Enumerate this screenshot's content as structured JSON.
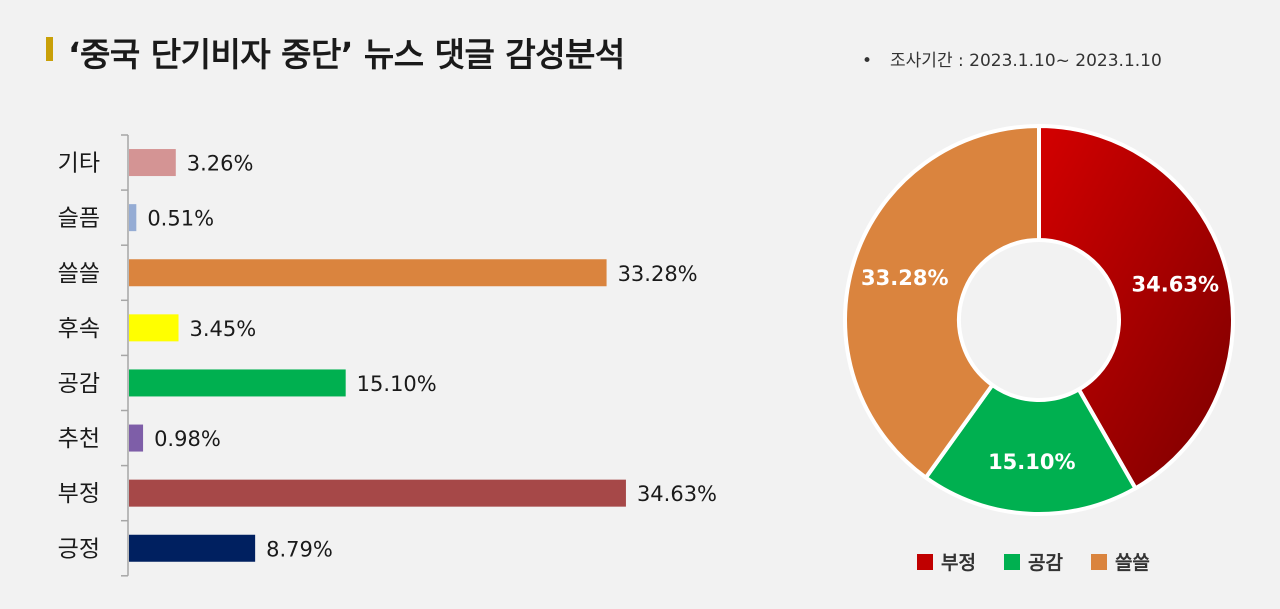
{
  "header": {
    "title": "‘중국 단기비자 중단’ 뉴스 댓글 감성분석",
    "period_bullet": "•",
    "period": "조사기간 : 2023.1.10~ 2023.1.10"
  },
  "chart_data": [
    {
      "type": "bar",
      "orientation": "horizontal",
      "categories": [
        "기타",
        "슬픔",
        "쓸쓸",
        "후속",
        "공감",
        "추천",
        "부정",
        "긍정"
      ],
      "values": [
        3.26,
        0.51,
        33.28,
        3.45,
        15.1,
        0.98,
        34.63,
        8.79
      ],
      "labels": [
        "3.26%",
        "0.51%",
        "33.28%",
        "3.45%",
        "15.10%",
        "0.98%",
        "34.63%",
        "8.79%"
      ],
      "colors": [
        "#d49494",
        "#95acd4",
        "#da843e",
        "#ffff00",
        "#00b050",
        "#7e5ea8",
        "#a64848",
        "#002060"
      ],
      "unit": "%"
    },
    {
      "type": "pie",
      "style": "donut",
      "categories": [
        "부정",
        "공감",
        "쓸쓸"
      ],
      "values": [
        34.63,
        15.1,
        33.28
      ],
      "labels": [
        "34.63%",
        "15.10%",
        "33.28%"
      ],
      "colors": [
        "#c00000",
        "#00b050",
        "#da843e"
      ],
      "legend": "bottom"
    }
  ]
}
